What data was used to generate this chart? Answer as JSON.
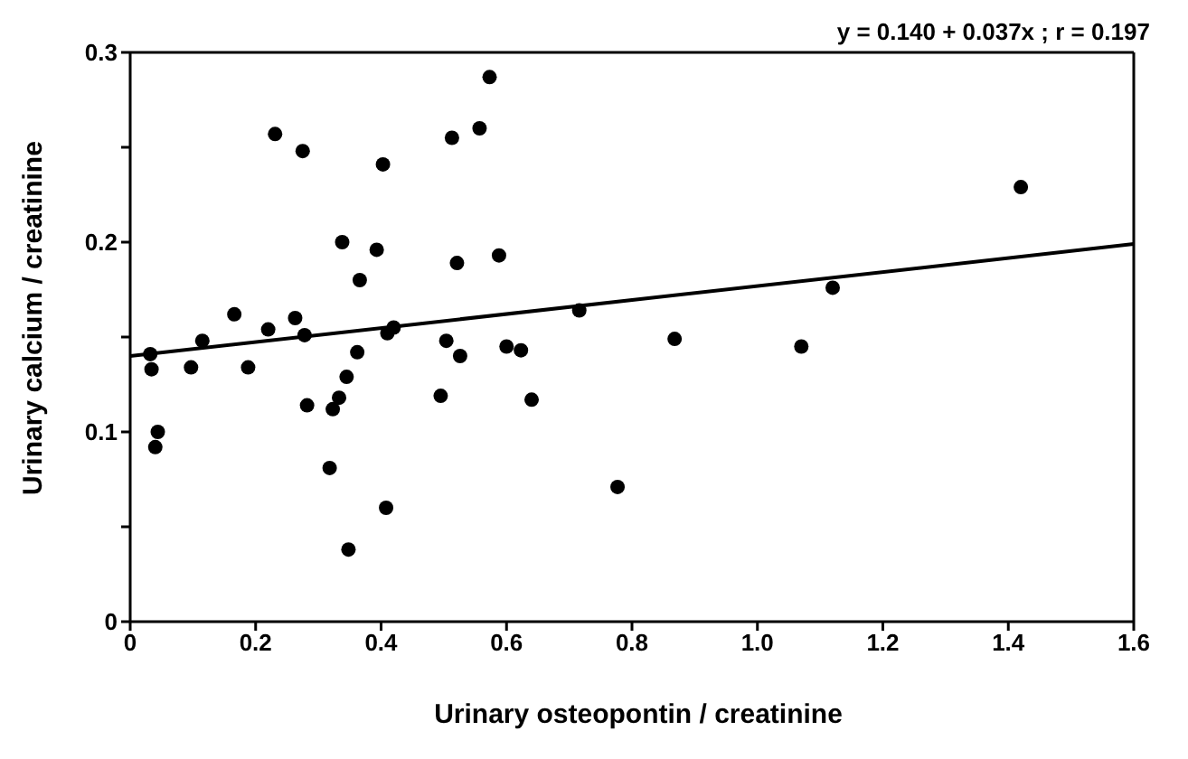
{
  "chart_data": {
    "type": "scatter",
    "xlabel": "Urinary osteopontin / creatinine",
    "ylabel": "Urinary calcium / creatinine",
    "annotations": [
      "y = 0.140 + 0.037x ; r = 0.197"
    ],
    "xlim": [
      0,
      1.6
    ],
    "xticks": [
      0,
      0.2,
      0.4,
      0.6,
      0.8,
      {
        "value": 1,
        "label": "1.0"
      },
      1.2,
      1.4,
      1.6
    ],
    "ylim": [
      0,
      0.3
    ],
    "yticks": [
      0,
      {
        "value": 0.05,
        "label": null
      },
      0.1,
      {
        "value": 0.15,
        "label": null
      },
      0.2,
      {
        "value": 0.25,
        "label": null
      },
      0.3
    ],
    "legend": false,
    "marker": "circle",
    "series": [
      {
        "color": "#000000",
        "x": [
          0.032,
          0.034,
          0.044,
          0.04,
          0.097,
          0.115,
          0.166,
          0.188,
          0.22,
          0.231,
          0.263,
          0.278,
          0.275,
          0.282,
          0.318,
          0.323,
          0.333,
          0.338,
          0.345,
          0.348,
          0.362,
          0.366,
          0.393,
          0.403,
          0.408,
          0.41,
          0.42,
          0.573,
          0.513,
          0.557,
          0.521,
          0.588,
          0.504,
          0.526,
          0.495,
          0.6,
          0.623,
          0.64,
          0.716,
          0.777,
          0.868,
          1.07,
          1.12,
          1.42
        ],
        "values": [
          0.141,
          0.133,
          0.1,
          0.092,
          0.134,
          0.148,
          0.162,
          0.134,
          0.154,
          0.257,
          0.16,
          0.151,
          0.248,
          0.114,
          0.081,
          0.112,
          0.118,
          0.2,
          0.129,
          0.038,
          0.142,
          0.18,
          0.196,
          0.241,
          0.06,
          0.152,
          0.155,
          0.287,
          0.255,
          0.26,
          0.189,
          0.193,
          0.148,
          0.14,
          0.119,
          0.145,
          0.143,
          0.117,
          0.164,
          0.071,
          0.149,
          0.145,
          0.176,
          0.229
        ]
      },
      {
        "type": "line",
        "color": "#000000",
        "marker": "none",
        "line_style": "solid",
        "x": [
          0,
          1.6
        ],
        "values": [
          0.14,
          0.199
        ]
      }
    ]
  }
}
